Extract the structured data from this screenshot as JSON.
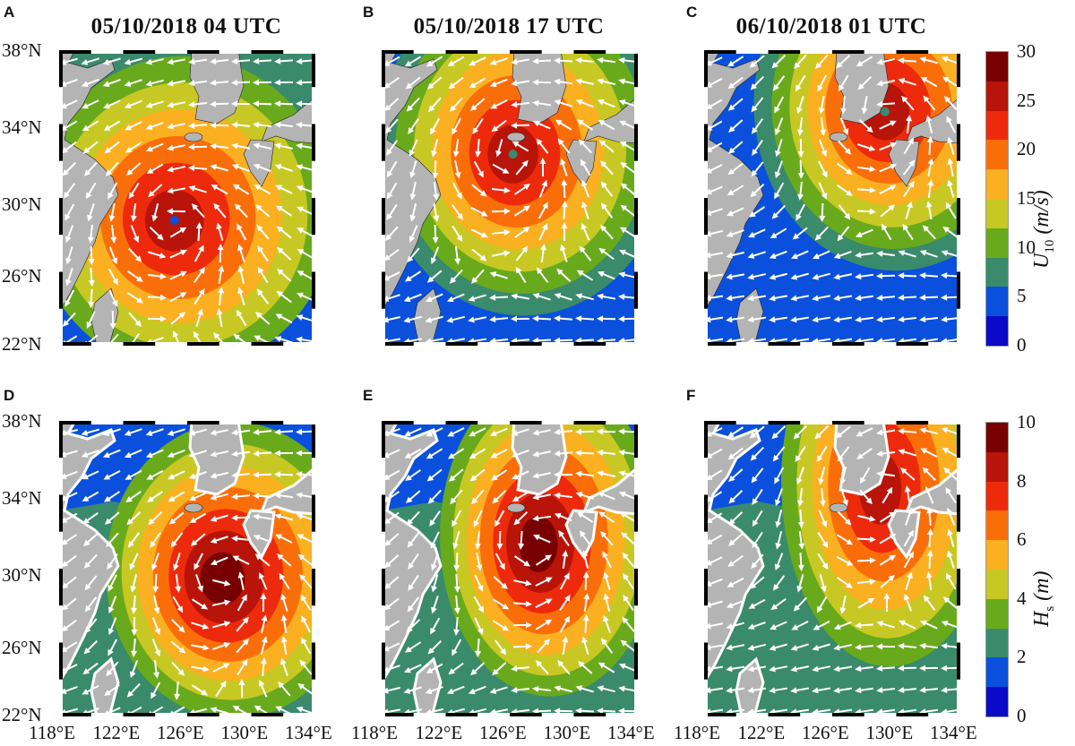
{
  "palette": [
    "#0a0ac8",
    "#0a50dc",
    "#3a8a6c",
    "#68aa1c",
    "#c8c824",
    "#fab020",
    "#fa6e0a",
    "#ee2a0c",
    "#b8140a",
    "#780000"
  ],
  "land_color": "#b4b4b4",
  "arrow_color": "#ffffff",
  "lat_ticks": [
    "38°N",
    "34°N",
    "30°N",
    "26°N",
    "22°N"
  ],
  "lon_ticks": [
    "118°E",
    "122°E",
    "126°E",
    "130°E",
    "134°E"
  ],
  "panels": [
    {
      "letter": "A",
      "title": "05/10/2018 04 UTC",
      "field": "U10",
      "storm_center": {
        "lon": 125.2,
        "lat": 29.1
      }
    },
    {
      "letter": "B",
      "title": "05/10/2018 17 UTC",
      "field": "U10",
      "storm_center": {
        "lon": 126.2,
        "lat": 32.6
      }
    },
    {
      "letter": "C",
      "title": "06/10/2018 01 UTC",
      "field": "U10",
      "storm_center": {
        "lon": 129.3,
        "lat": 34.8
      }
    },
    {
      "letter": "D",
      "title": "",
      "field": "Hs",
      "storm_center": {
        "lon": 128.2,
        "lat": 29.8
      }
    },
    {
      "letter": "E",
      "title": "",
      "field": "Hs",
      "storm_center": {
        "lon": 127.8,
        "lat": 31.6
      }
    },
    {
      "letter": "F",
      "title": "",
      "field": "Hs",
      "storm_center": {
        "lon": 129.0,
        "lat": 34.5
      }
    }
  ],
  "colorbars": [
    {
      "symbol": "U",
      "subscript": "10",
      "unit": "(m/s)",
      "ticks": [
        "30",
        "25",
        "20",
        "15",
        "10",
        "5",
        "0"
      ],
      "range": [
        0,
        30
      ],
      "levels": 10
    },
    {
      "symbol": "H",
      "subscript": "s",
      "unit": "(m)",
      "ticks": [
        "10",
        "8",
        "6",
        "4",
        "2",
        "0"
      ],
      "range": [
        0,
        10
      ],
      "levels": 10
    }
  ]
}
